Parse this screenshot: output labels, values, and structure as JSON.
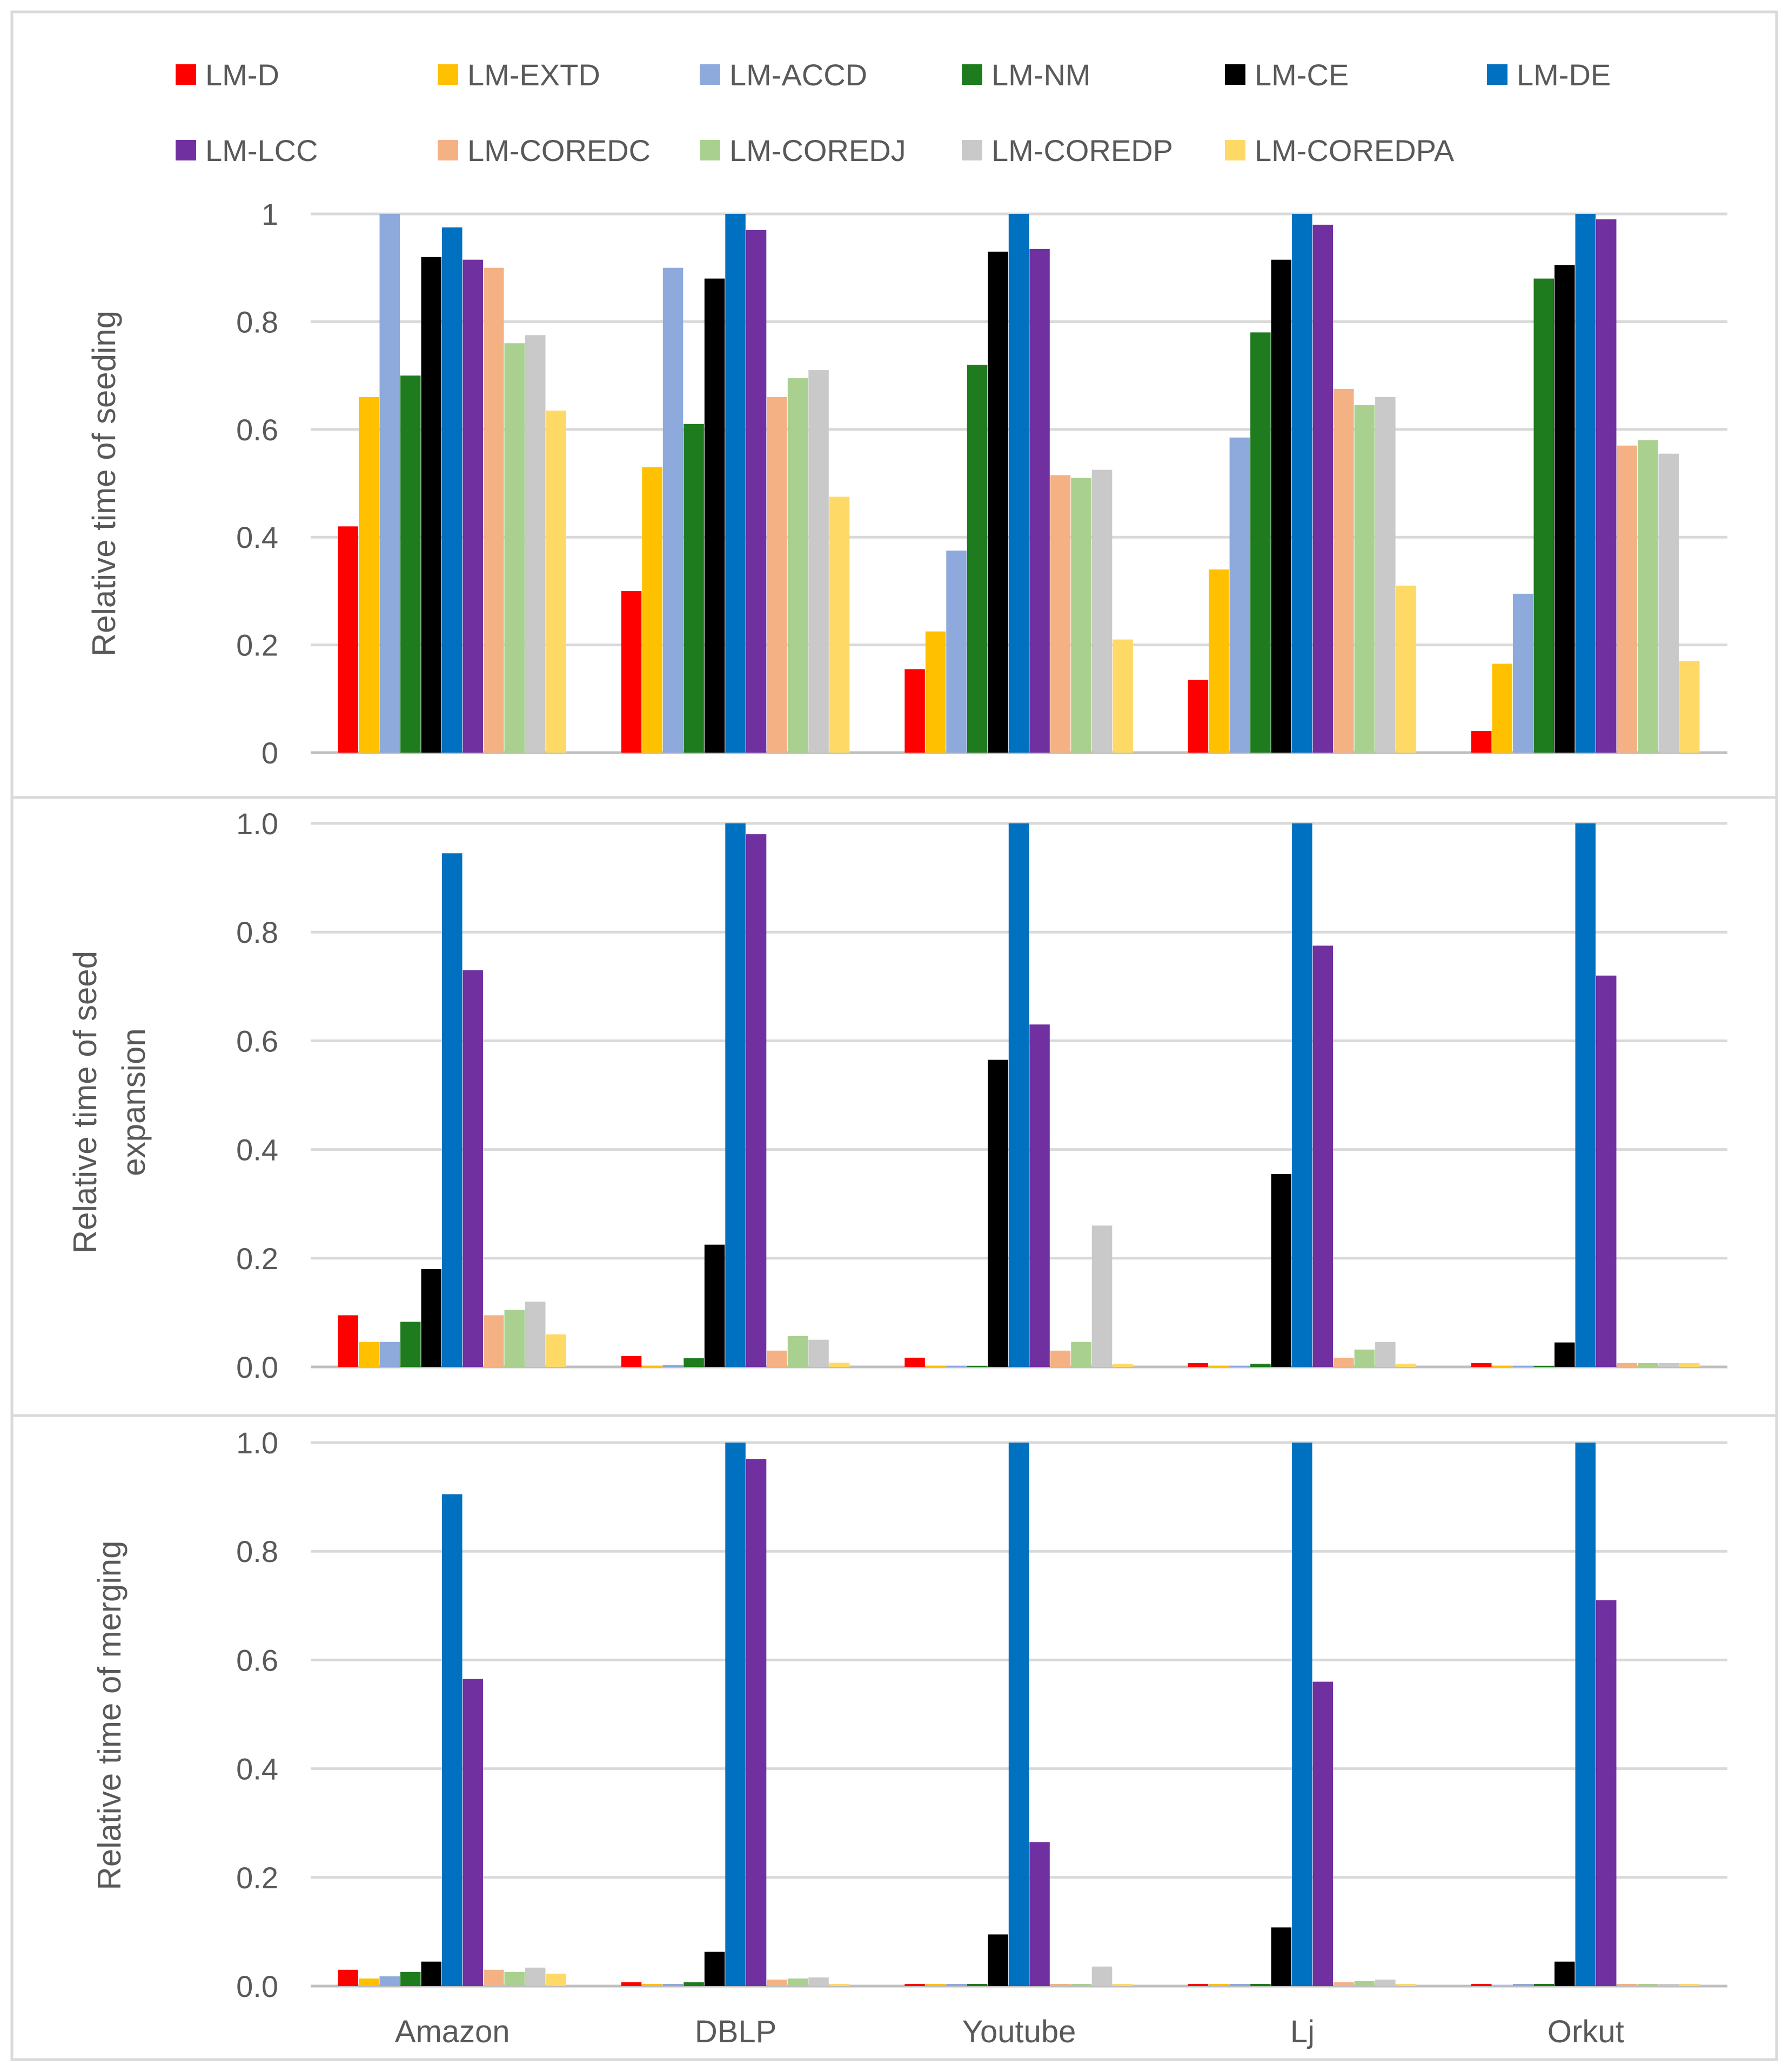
{
  "chart_data": {
    "type": "bar",
    "categories": [
      "Amazon",
      "DBLP",
      "Youtube",
      "Lj",
      "Orkut"
    ],
    "legend": [
      {
        "name": "LM-D",
        "color": "#FF0000"
      },
      {
        "name": "LM-EXTD",
        "color": "#FFC000"
      },
      {
        "name": "LM-ACCD",
        "color": "#8EA9DB"
      },
      {
        "name": "LM-NM",
        "color": "#1E7B1E"
      },
      {
        "name": "LM-CE",
        "color": "#000000"
      },
      {
        "name": "LM-DE",
        "color": "#0070C0"
      },
      {
        "name": "LM-LCC",
        "color": "#7030A0"
      },
      {
        "name": "LM-COREDC",
        "color": "#F4B183"
      },
      {
        "name": "LM-COREDJ",
        "color": "#A9D08E"
      },
      {
        "name": "LM-COREDP",
        "color": "#C9C9C9"
      },
      {
        "name": "LM-COREDPA",
        "color": "#FFD966"
      }
    ],
    "panels": [
      {
        "ylabel": "Relative time of seeding",
        "ylim": [
          0,
          1
        ],
        "yticks": [
          "0",
          "0.2",
          "0.4",
          "0.6",
          "0.8",
          "1"
        ],
        "grid": true,
        "series": [
          {
            "name": "LM-D",
            "values": [
              0.42,
              0.3,
              0.155,
              0.135,
              0.04
            ]
          },
          {
            "name": "LM-EXTD",
            "values": [
              0.66,
              0.53,
              0.225,
              0.34,
              0.165
            ]
          },
          {
            "name": "LM-ACCD",
            "values": [
              1.0,
              0.9,
              0.375,
              0.585,
              0.295
            ]
          },
          {
            "name": "LM-NM",
            "values": [
              0.7,
              0.61,
              0.72,
              0.78,
              0.88
            ]
          },
          {
            "name": "LM-CE",
            "values": [
              0.92,
              0.88,
              0.93,
              0.915,
              0.905
            ]
          },
          {
            "name": "LM-DE",
            "values": [
              0.975,
              1.0,
              1.0,
              1.0,
              1.0
            ]
          },
          {
            "name": "LM-LCC",
            "values": [
              0.915,
              0.97,
              0.935,
              0.98,
              0.99
            ]
          },
          {
            "name": "LM-COREDC",
            "values": [
              0.9,
              0.66,
              0.515,
              0.675,
              0.57
            ]
          },
          {
            "name": "LM-COREDJ",
            "values": [
              0.76,
              0.695,
              0.51,
              0.645,
              0.58
            ]
          },
          {
            "name": "LM-COREDP",
            "values": [
              0.775,
              0.71,
              0.525,
              0.66,
              0.555
            ]
          },
          {
            "name": "LM-COREDPA",
            "values": [
              0.635,
              0.475,
              0.21,
              0.31,
              0.17
            ]
          }
        ]
      },
      {
        "ylabel": "Relative time of seed expansion",
        "ylabel_lines": [
          "Relative time of seed",
          "expansion"
        ],
        "ylim": [
          0,
          1
        ],
        "yticks": [
          "0.0",
          "0.2",
          "0.4",
          "0.6",
          "0.8",
          "1.0"
        ],
        "grid": true,
        "series": [
          {
            "name": "LM-D",
            "values": [
              0.095,
              0.02,
              0.017,
              0.007,
              0.007
            ]
          },
          {
            "name": "LM-EXTD",
            "values": [
              0.046,
              0.002,
              0.002,
              0.002,
              0.002
            ]
          },
          {
            "name": "LM-ACCD",
            "values": [
              0.046,
              0.004,
              0.002,
              0.002,
              0.002
            ]
          },
          {
            "name": "LM-NM",
            "values": [
              0.083,
              0.016,
              0.002,
              0.006,
              0.002
            ]
          },
          {
            "name": "LM-CE",
            "values": [
              0.18,
              0.225,
              0.565,
              0.355,
              0.045
            ]
          },
          {
            "name": "LM-DE",
            "values": [
              0.945,
              1.0,
              1.0,
              1.0,
              1.0
            ]
          },
          {
            "name": "LM-LCC",
            "values": [
              0.73,
              0.98,
              0.63,
              0.775,
              0.72
            ]
          },
          {
            "name": "LM-COREDC",
            "values": [
              0.095,
              0.03,
              0.03,
              0.017,
              0.007
            ]
          },
          {
            "name": "LM-COREDJ",
            "values": [
              0.105,
              0.057,
              0.046,
              0.032,
              0.007
            ]
          },
          {
            "name": "LM-COREDP",
            "values": [
              0.12,
              0.05,
              0.26,
              0.046,
              0.007
            ]
          },
          {
            "name": "LM-COREDPA",
            "values": [
              0.06,
              0.008,
              0.006,
              0.006,
              0.007
            ]
          }
        ]
      },
      {
        "ylabel": "Relative time of merging",
        "ylim": [
          0,
          1
        ],
        "yticks": [
          "0.0",
          "0.2",
          "0.4",
          "0.6",
          "0.8",
          "1.0"
        ],
        "grid": true,
        "series": [
          {
            "name": "LM-D",
            "values": [
              0.03,
              0.007,
              0.004,
              0.004,
              0.004
            ]
          },
          {
            "name": "LM-EXTD",
            "values": [
              0.014,
              0.004,
              0.004,
              0.004,
              0.002
            ]
          },
          {
            "name": "LM-ACCD",
            "values": [
              0.018,
              0.004,
              0.004,
              0.004,
              0.004
            ]
          },
          {
            "name": "LM-NM",
            "values": [
              0.026,
              0.007,
              0.004,
              0.004,
              0.004
            ]
          },
          {
            "name": "LM-CE",
            "values": [
              0.045,
              0.063,
              0.095,
              0.108,
              0.045
            ]
          },
          {
            "name": "LM-DE",
            "values": [
              0.905,
              1.0,
              1.0,
              1.0,
              1.0
            ]
          },
          {
            "name": "LM-LCC",
            "values": [
              0.565,
              0.97,
              0.265,
              0.56,
              0.71
            ]
          },
          {
            "name": "LM-COREDC",
            "values": [
              0.03,
              0.012,
              0.004,
              0.007,
              0.004
            ]
          },
          {
            "name": "LM-COREDJ",
            "values": [
              0.026,
              0.014,
              0.004,
              0.009,
              0.004
            ]
          },
          {
            "name": "LM-COREDP",
            "values": [
              0.034,
              0.016,
              0.036,
              0.012,
              0.004
            ]
          },
          {
            "name": "LM-COREDPA",
            "values": [
              0.023,
              0.004,
              0.004,
              0.004,
              0.004
            ]
          }
        ]
      }
    ]
  }
}
